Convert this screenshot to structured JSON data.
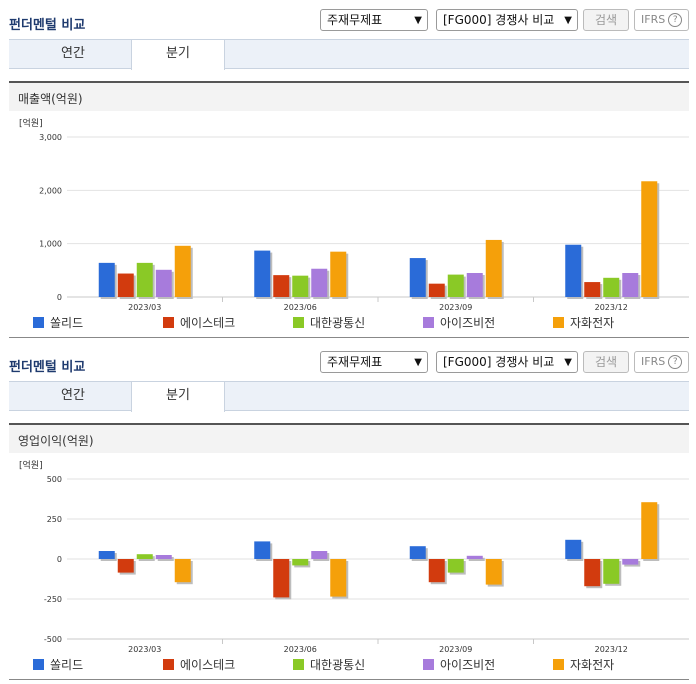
{
  "panels": [
    {
      "title": "펀더멘털 비교",
      "select1": "주재무제표",
      "select2": "[FG000] 경쟁사 비교",
      "search_label": "검색",
      "ifrs_label": "IFRS",
      "help_glyph": "?",
      "tabs": [
        {
          "label": "연간",
          "active": false
        },
        {
          "label": "분기",
          "active": true
        }
      ],
      "section_title": "매출액(억원)"
    },
    {
      "title": "펀더멘털 비교",
      "select1": "주재무제표",
      "select2": "[FG000] 경쟁사 비교",
      "search_label": "검색",
      "ifrs_label": "IFRS",
      "help_glyph": "?",
      "tabs": [
        {
          "label": "연간",
          "active": false
        },
        {
          "label": "분기",
          "active": true
        }
      ],
      "section_title": "영업이익(억원)"
    }
  ],
  "chart_data": [
    {
      "type": "bar",
      "title": "매출액(억원)",
      "unit_label": "[억원]",
      "categories": [
        "2023/03",
        "2023/06",
        "2023/09",
        "2023/12"
      ],
      "ylim": [
        0,
        3000
      ],
      "yticks": [
        0,
        1000,
        2000,
        3000
      ],
      "ytick_labels": [
        "0",
        "1,000",
        "2,000",
        "3,000"
      ],
      "grid": true,
      "legend_position": "bottom",
      "series": [
        {
          "name": "쏠리드",
          "color": "#2a6bd8",
          "values": [
            640,
            870,
            730,
            980
          ]
        },
        {
          "name": "에이스테크",
          "color": "#d23b0e",
          "values": [
            440,
            410,
            250,
            280
          ]
        },
        {
          "name": "대한광통신",
          "color": "#8ac926",
          "values": [
            640,
            400,
            420,
            360
          ]
        },
        {
          "name": "아이즈비전",
          "color": "#a77bdc",
          "values": [
            510,
            530,
            450,
            450
          ]
        },
        {
          "name": "자화전자",
          "color": "#f5a00a",
          "values": [
            960,
            850,
            1070,
            2170
          ]
        }
      ]
    },
    {
      "type": "bar",
      "title": "영업이익(억원)",
      "unit_label": "[억원]",
      "categories": [
        "2023/03",
        "2023/06",
        "2023/09",
        "2023/12"
      ],
      "ylim": [
        -500,
        500
      ],
      "yticks": [
        -500,
        -250,
        0,
        250,
        500
      ],
      "ytick_labels": [
        "-500",
        "-250",
        "0",
        "250",
        "500"
      ],
      "grid": true,
      "legend_position": "bottom",
      "series": [
        {
          "name": "쏠리드",
          "color": "#2a6bd8",
          "values": [
            50,
            110,
            80,
            120
          ]
        },
        {
          "name": "에이스테크",
          "color": "#d23b0e",
          "values": [
            -85,
            -240,
            -145,
            -170
          ]
        },
        {
          "name": "대한광통신",
          "color": "#8ac926",
          "values": [
            30,
            -40,
            -85,
            -155
          ]
        },
        {
          "name": "아이즈비전",
          "color": "#a77bdc",
          "values": [
            25,
            50,
            20,
            -35
          ]
        },
        {
          "name": "자화전자",
          "color": "#f5a00a",
          "values": [
            -145,
            -235,
            -160,
            355
          ]
        }
      ]
    }
  ]
}
